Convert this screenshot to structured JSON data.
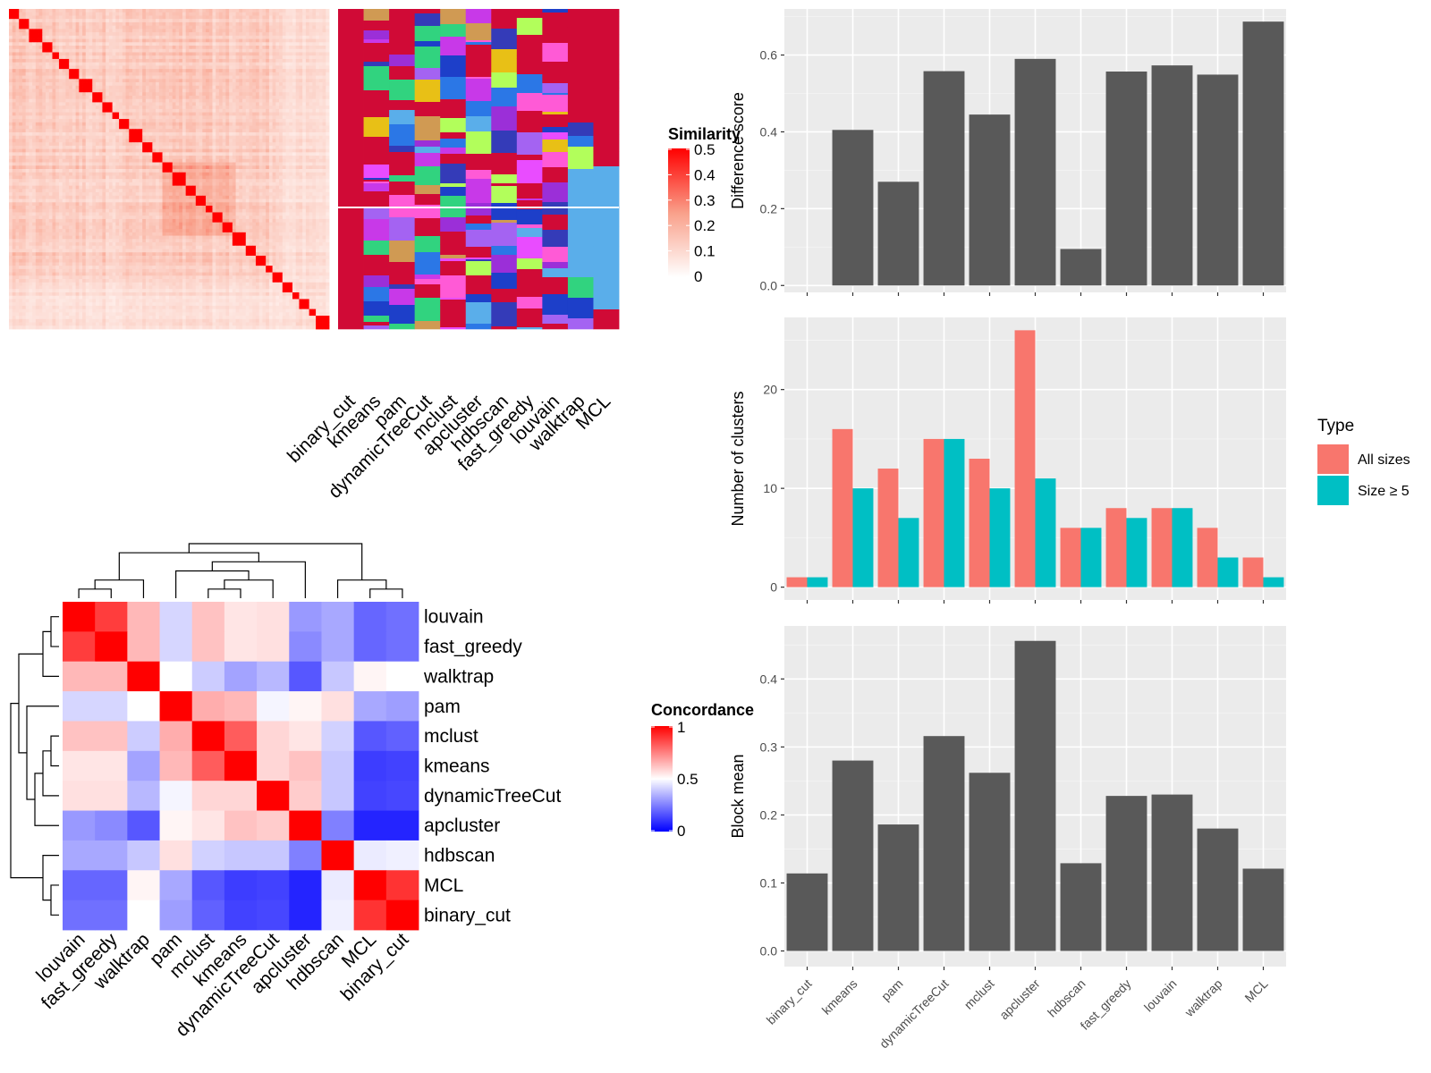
{
  "chart_data": [
    {
      "type": "heatmap",
      "name": "similarity-matrix-with-partitions",
      "legend_title": "Similarity",
      "legend_ticks": [
        "0",
        "0.1",
        "0.2",
        "0.3",
        "0.4",
        "0.5"
      ],
      "color_range": [
        "#ffffff",
        "#ff0000"
      ],
      "value_range": [
        0,
        0.5
      ],
      "n_terms": 96,
      "diagonal_blocks": [
        3,
        3,
        4,
        3,
        2,
        3,
        3,
        4,
        3,
        3,
        2,
        3,
        4,
        3,
        3,
        3,
        4,
        3,
        3,
        2,
        3,
        3,
        4,
        3,
        3,
        2,
        3,
        3,
        2,
        3,
        2,
        3
      ],
      "strong_block_region": [
        0.47,
        0.7
      ],
      "methods": [
        "binary_cut",
        "kmeans",
        "pam",
        "dynamicTreeCut",
        "mclust",
        "apcluster",
        "hdbscan",
        "fast_greedy",
        "louvain",
        "walktrap",
        "MCL"
      ],
      "main_cluster_color": "#d00a36",
      "secondary_cluster_color": "#5aaeea",
      "cluster_palette": [
        "#d00a36",
        "#5aaeea",
        "#ff5ad6",
        "#a463f2",
        "#b2fe5b",
        "#d09a53",
        "#1d3fc9",
        "#2b77e6",
        "#c839e8",
        "#31d37f",
        "#e8c016",
        "#343bb8",
        "#9b2fd8",
        "#e94cff"
      ]
    },
    {
      "type": "heatmap",
      "name": "concordance-matrix",
      "legend_title": "Concordance",
      "legend_ticks": [
        "0",
        "0.5",
        "1"
      ],
      "color_range": [
        "#0000ff",
        "#ffffff",
        "#ff0000"
      ],
      "value_range": [
        0,
        1
      ],
      "rows": [
        "louvain",
        "fast_greedy",
        "walktrap",
        "pam",
        "mclust",
        "kmeans",
        "dynamicTreeCut",
        "apcluster",
        "hdbscan",
        "MCL",
        "binary_cut"
      ],
      "columns": [
        "louvain",
        "fast_greedy",
        "walktrap",
        "pam",
        "mclust",
        "kmeans",
        "dynamicTreeCut",
        "apcluster",
        "hdbscan",
        "MCL",
        "binary_cut"
      ],
      "values": [
        [
          1.0,
          0.88,
          0.64,
          0.42,
          0.62,
          0.55,
          0.56,
          0.3,
          0.33,
          0.2,
          0.22
        ],
        [
          0.88,
          1.0,
          0.64,
          0.42,
          0.62,
          0.55,
          0.56,
          0.27,
          0.33,
          0.2,
          0.22
        ],
        [
          0.64,
          0.64,
          1.0,
          0.5,
          0.4,
          0.32,
          0.36,
          0.17,
          0.39,
          0.52,
          0.5
        ],
        [
          0.42,
          0.42,
          0.5,
          1.0,
          0.66,
          0.64,
          0.48,
          0.52,
          0.56,
          0.33,
          0.31
        ],
        [
          0.62,
          0.62,
          0.4,
          0.66,
          1.0,
          0.82,
          0.58,
          0.55,
          0.41,
          0.17,
          0.19
        ],
        [
          0.55,
          0.55,
          0.32,
          0.64,
          0.82,
          1.0,
          0.58,
          0.62,
          0.39,
          0.12,
          0.13
        ],
        [
          0.56,
          0.56,
          0.36,
          0.48,
          0.58,
          0.58,
          1.0,
          0.6,
          0.39,
          0.13,
          0.14
        ],
        [
          0.3,
          0.27,
          0.17,
          0.52,
          0.55,
          0.62,
          0.6,
          1.0,
          0.25,
          0.07,
          0.07
        ],
        [
          0.33,
          0.33,
          0.39,
          0.56,
          0.41,
          0.39,
          0.39,
          0.25,
          1.0,
          0.46,
          0.47
        ],
        [
          0.2,
          0.2,
          0.52,
          0.33,
          0.17,
          0.12,
          0.13,
          0.07,
          0.46,
          1.0,
          0.9
        ],
        [
          0.22,
          0.22,
          0.5,
          0.31,
          0.19,
          0.13,
          0.14,
          0.07,
          0.47,
          0.9,
          1.0
        ]
      ],
      "column_tree": [
        [
          [
            [
              0,
              1
            ],
            2
          ],
          [
            [
              3,
              [
                [
                  4,
                  5
                ],
                6
              ]
            ],
            7
          ]
        ],
        [
          8,
          [
            9,
            10
          ]
        ]
      ],
      "row_tree": [
        [
          [
            [
              0,
              1
            ],
            2
          ],
          [
            3,
            [
              [
                [
                  4,
                  5
                ],
                6
              ],
              7
            ]
          ]
        ],
        [
          8,
          [
            9,
            10
          ]
        ]
      ]
    },
    {
      "type": "bar",
      "name": "difference-score",
      "categories": [
        "binary_cut",
        "kmeans",
        "pam",
        "dynamicTreeCut",
        "mclust",
        "apcluster",
        "hdbscan",
        "fast_greedy",
        "louvain",
        "walktrap",
        "MCL"
      ],
      "values": [
        0.0,
        0.405,
        0.27,
        0.558,
        0.445,
        0.59,
        0.095,
        0.557,
        0.573,
        0.549,
        0.687
      ],
      "ylabel": "Difference score",
      "xlabel": "",
      "ylim": [
        -0.018,
        0.72
      ],
      "yticks": [
        "0.0",
        "0.2",
        "0.4",
        "0.6"
      ],
      "bar_color": "#595959",
      "grid": true
    },
    {
      "type": "bar",
      "name": "number-of-clusters",
      "categories": [
        "binary_cut",
        "kmeans",
        "pam",
        "dynamicTreeCut",
        "mclust",
        "apcluster",
        "hdbscan",
        "fast_greedy",
        "louvain",
        "walktrap",
        "MCL"
      ],
      "series": [
        {
          "name": "All sizes",
          "color": "#f8766d",
          "values": [
            1,
            16,
            12,
            15,
            13,
            26,
            6,
            8,
            8,
            6,
            3
          ]
        },
        {
          "name": "Size ≥ 5",
          "color": "#00bfc4",
          "values": [
            1,
            10,
            7,
            15,
            10,
            11,
            6,
            7,
            8,
            3,
            1
          ]
        }
      ],
      "ylabel": "Number of clusters",
      "xlabel": "",
      "ylim": [
        -1.3,
        27.3
      ],
      "yticks": [
        "0",
        "10",
        "20"
      ],
      "legend_title": "Type",
      "legend_position": "right",
      "grid": true
    },
    {
      "type": "bar",
      "name": "block-mean",
      "categories": [
        "binary_cut",
        "kmeans",
        "pam",
        "dynamicTreeCut",
        "mclust",
        "apcluster",
        "hdbscan",
        "fast_greedy",
        "louvain",
        "walktrap",
        "MCL"
      ],
      "values": [
        0.114,
        0.28,
        0.186,
        0.316,
        0.262,
        0.456,
        0.129,
        0.228,
        0.23,
        0.18,
        0.121
      ],
      "ylabel": "Block mean",
      "xlabel": "",
      "ylim": [
        -0.023,
        0.478
      ],
      "yticks": [
        "0.0",
        "0.1",
        "0.2",
        "0.3",
        "0.4"
      ],
      "bar_color": "#595959",
      "grid": true
    }
  ]
}
